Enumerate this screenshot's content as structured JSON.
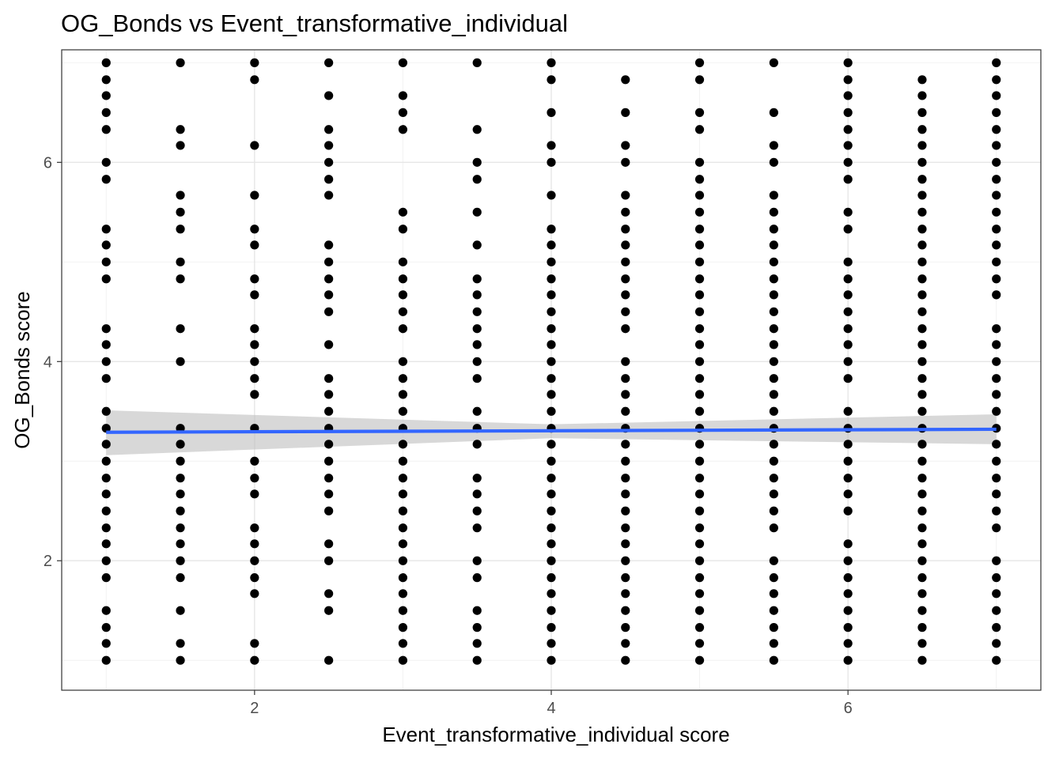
{
  "chart_data": {
    "type": "scatter",
    "title": "OG_Bonds vs Event_transformative_individual",
    "xlabel": "Event_transformative_individual score",
    "ylabel": "OG_Bonds score",
    "xlim": [
      0.7,
      7.3
    ],
    "ylim": [
      0.7,
      7.13
    ],
    "x_ticks": [
      2,
      4,
      6
    ],
    "y_ticks": [
      2,
      4,
      6
    ],
    "grid": true,
    "point_color": "#000000",
    "trend_color": "#3366FF",
    "band_color": "#BEBEBE",
    "columns": [
      {
        "x": 1.0,
        "y": [
          7.0,
          6.83,
          6.67,
          6.5,
          6.33,
          6.0,
          5.83,
          5.33,
          5.17,
          5.0,
          4.83,
          4.33,
          4.17,
          4.0,
          3.83,
          3.5,
          3.33,
          3.17,
          3.0,
          2.83,
          2.67,
          2.5,
          2.33,
          2.17,
          2.0,
          1.83,
          1.5,
          1.33,
          1.17,
          1.0
        ]
      },
      {
        "x": 1.5,
        "y": [
          7.0,
          6.33,
          6.17,
          5.67,
          5.5,
          5.33,
          5.0,
          4.83,
          4.33,
          4.0,
          3.33,
          3.17,
          3.0,
          2.83,
          2.67,
          2.5,
          2.33,
          2.17,
          2.0,
          1.83,
          1.5,
          1.17,
          1.0
        ]
      },
      {
        "x": 2.0,
        "y": [
          7.0,
          6.83,
          6.17,
          5.67,
          5.33,
          5.17,
          4.83,
          4.67,
          4.33,
          4.17,
          4.0,
          3.83,
          3.67,
          3.33,
          3.0,
          2.83,
          2.67,
          2.33,
          2.17,
          2.0,
          1.83,
          1.67,
          1.17,
          1.0
        ]
      },
      {
        "x": 2.5,
        "y": [
          7.0,
          6.67,
          6.33,
          6.17,
          6.0,
          5.83,
          5.67,
          5.17,
          5.0,
          4.83,
          4.67,
          4.5,
          4.17,
          3.83,
          3.67,
          3.5,
          3.33,
          3.17,
          3.0,
          2.83,
          2.67,
          2.5,
          2.17,
          2.0,
          1.67,
          1.5,
          1.0
        ]
      },
      {
        "x": 3.0,
        "y": [
          7.0,
          6.67,
          6.5,
          6.33,
          5.5,
          5.33,
          5.0,
          4.83,
          4.67,
          4.5,
          4.33,
          4.0,
          3.83,
          3.67,
          3.5,
          3.33,
          3.17,
          3.0,
          2.83,
          2.67,
          2.5,
          2.33,
          2.17,
          2.0,
          1.83,
          1.67,
          1.5,
          1.33,
          1.17,
          1.0
        ]
      },
      {
        "x": 3.5,
        "y": [
          7.0,
          6.33,
          6.0,
          5.83,
          5.5,
          5.17,
          4.83,
          4.67,
          4.5,
          4.33,
          4.17,
          4.0,
          3.83,
          3.5,
          3.33,
          3.17,
          2.83,
          2.67,
          2.5,
          2.33,
          2.0,
          1.83,
          1.5,
          1.33,
          1.17,
          1.0
        ]
      },
      {
        "x": 4.0,
        "y": [
          7.0,
          6.83,
          6.5,
          6.17,
          6.0,
          5.67,
          5.33,
          5.17,
          5.0,
          4.83,
          4.67,
          4.5,
          4.33,
          4.17,
          4.0,
          3.83,
          3.67,
          3.5,
          3.33,
          3.17,
          3.0,
          2.83,
          2.67,
          2.5,
          2.33,
          2.17,
          2.0,
          1.83,
          1.67,
          1.5,
          1.33,
          1.17,
          1.0
        ]
      },
      {
        "x": 4.5,
        "y": [
          6.83,
          6.5,
          6.17,
          6.0,
          5.67,
          5.5,
          5.33,
          5.17,
          5.0,
          4.83,
          4.67,
          4.5,
          4.33,
          4.0,
          3.83,
          3.67,
          3.5,
          3.33,
          3.17,
          3.0,
          2.83,
          2.67,
          2.5,
          2.33,
          2.17,
          2.0,
          1.83,
          1.67,
          1.5,
          1.33,
          1.17,
          1.0
        ]
      },
      {
        "x": 5.0,
        "y": [
          7.0,
          6.83,
          6.5,
          6.33,
          6.0,
          5.83,
          5.67,
          5.5,
          5.33,
          5.17,
          5.0,
          4.83,
          4.67,
          4.5,
          4.33,
          4.17,
          4.0,
          3.83,
          3.67,
          3.5,
          3.33,
          3.17,
          3.0,
          2.83,
          2.67,
          2.5,
          2.33,
          2.17,
          2.0,
          1.83,
          1.67,
          1.5,
          1.33,
          1.17,
          1.0
        ]
      },
      {
        "x": 5.5,
        "y": [
          7.0,
          6.5,
          6.17,
          6.0,
          5.67,
          5.5,
          5.33,
          5.17,
          5.0,
          4.83,
          4.67,
          4.5,
          4.33,
          4.17,
          4.0,
          3.83,
          3.67,
          3.5,
          3.33,
          3.17,
          3.0,
          2.83,
          2.67,
          2.5,
          2.33,
          2.0,
          1.83,
          1.67,
          1.5,
          1.33,
          1.17,
          1.0
        ]
      },
      {
        "x": 6.0,
        "y": [
          7.0,
          6.83,
          6.67,
          6.5,
          6.33,
          6.17,
          6.0,
          5.83,
          5.5,
          5.33,
          5.0,
          4.83,
          4.67,
          4.5,
          4.33,
          4.17,
          4.0,
          3.83,
          3.5,
          3.33,
          3.17,
          3.0,
          2.83,
          2.67,
          2.5,
          2.17,
          2.0,
          1.83,
          1.67,
          1.5,
          1.33,
          1.17,
          1.0
        ]
      },
      {
        "x": 6.5,
        "y": [
          6.83,
          6.67,
          6.5,
          6.33,
          6.17,
          6.0,
          5.83,
          5.67,
          5.5,
          5.33,
          5.17,
          5.0,
          4.83,
          4.67,
          4.5,
          4.33,
          4.17,
          4.0,
          3.83,
          3.67,
          3.5,
          3.33,
          3.17,
          3.0,
          2.83,
          2.67,
          2.5,
          2.33,
          2.17,
          2.0,
          1.83,
          1.67,
          1.5,
          1.33,
          1.17,
          1.0
        ]
      },
      {
        "x": 7.0,
        "y": [
          7.0,
          6.83,
          6.67,
          6.5,
          6.33,
          6.17,
          6.0,
          5.83,
          5.67,
          5.5,
          5.33,
          5.17,
          5.0,
          4.83,
          4.67,
          4.33,
          4.17,
          4.0,
          3.83,
          3.67,
          3.5,
          3.33,
          3.17,
          3.0,
          2.83,
          2.67,
          2.5,
          2.33,
          2.0,
          1.83,
          1.67,
          1.5,
          1.33,
          1.17,
          1.0
        ]
      }
    ],
    "trend": {
      "x": [
        1.0,
        7.0
      ],
      "y": [
        3.29,
        3.32
      ]
    },
    "band": {
      "x": [
        1.0,
        4.0,
        7.0
      ],
      "upper": [
        3.51,
        3.37,
        3.47
      ],
      "lower": [
        3.06,
        3.23,
        3.17
      ]
    }
  }
}
